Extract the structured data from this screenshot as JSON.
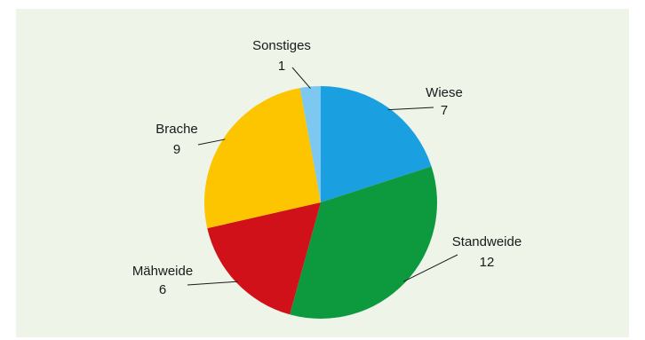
{
  "chart_data": {
    "type": "pie",
    "categories": [
      "Wiese",
      "Standweide",
      "Mähweide",
      "Brache",
      "Sonstiges"
    ],
    "values": [
      7,
      12,
      6,
      9,
      1
    ],
    "colors": [
      "#1a9fe0",
      "#0d9a3e",
      "#d11119",
      "#fcc500",
      "#7cc8f0"
    ],
    "start_angle": "12 o'clock",
    "direction": "clockwise",
    "title": "",
    "legend": "none"
  }
}
